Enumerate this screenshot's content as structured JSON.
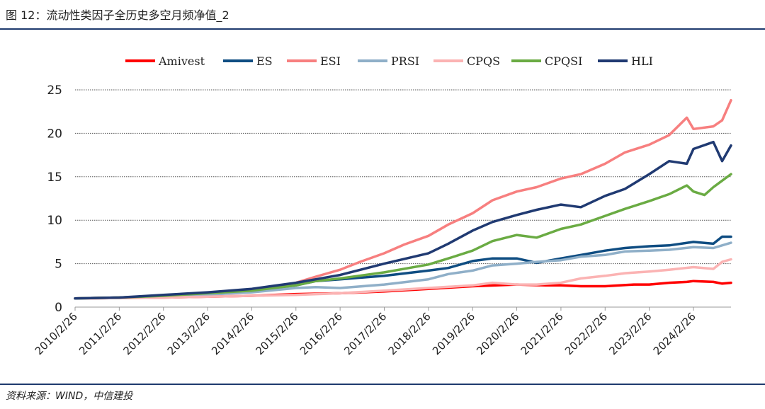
{
  "header": {
    "title": "图 12：流动性类因子全历史多空月频净值_2"
  },
  "footer": {
    "source": "资料来源：WIND，中信建投"
  },
  "chart_data": {
    "type": "line",
    "ylim": [
      0,
      25
    ],
    "yticks": [
      "0",
      "5",
      "10",
      "15",
      "20",
      "25"
    ],
    "xticks": [
      "2010/2/26",
      "2011/2/26",
      "2012/2/26",
      "2013/2/26",
      "2014/2/26",
      "2015/2/26",
      "2016/2/26",
      "2017/2/26",
      "2018/2/26",
      "2019/2/26",
      "2020/2/26",
      "2021/2/26",
      "2022/2/26",
      "2023/2/26",
      "2024/2/26"
    ],
    "x_start": 2010.15,
    "x_end": 2025.0,
    "grid": true,
    "legend_position": "top",
    "series": [
      {
        "name": "Amivest",
        "color": "#ff0000",
        "x": [
          2010.15,
          2011.15,
          2012.15,
          2013.15,
          2014.15,
          2015.15,
          2016.15,
          2017.15,
          2018.15,
          2019.15,
          2020.15,
          2020.8,
          2021.15,
          2021.6,
          2022.15,
          2022.8,
          2023.15,
          2023.6,
          2024.0,
          2024.15,
          2024.6,
          2024.8,
          2025.0
        ],
        "y": [
          1.0,
          1.05,
          1.1,
          1.2,
          1.3,
          1.5,
          1.6,
          1.8,
          2.1,
          2.4,
          2.6,
          2.5,
          2.5,
          2.4,
          2.4,
          2.6,
          2.6,
          2.8,
          2.9,
          3.0,
          2.9,
          2.7,
          2.8
        ]
      },
      {
        "name": "ES",
        "color": "#0f4d82",
        "x": [
          2010.15,
          2011.15,
          2012.15,
          2013.15,
          2014.15,
          2015.15,
          2015.6,
          2016.15,
          2017.15,
          2018.15,
          2018.6,
          2019.15,
          2019.6,
          2020.15,
          2020.6,
          2021.15,
          2021.6,
          2022.15,
          2022.6,
          2023.15,
          2023.6,
          2024.15,
          2024.6,
          2024.8,
          2025.0
        ],
        "y": [
          1.0,
          1.1,
          1.3,
          1.6,
          1.9,
          2.5,
          3.0,
          3.2,
          3.6,
          4.2,
          4.5,
          5.3,
          5.6,
          5.6,
          5.1,
          5.6,
          6.0,
          6.5,
          6.8,
          7.0,
          7.1,
          7.5,
          7.3,
          8.1,
          8.1
        ]
      },
      {
        "name": "ESI",
        "color": "#f77f7f",
        "x": [
          2010.15,
          2011.15,
          2012.15,
          2013.15,
          2014.15,
          2014.8,
          2015.15,
          2015.6,
          2016.15,
          2016.6,
          2017.15,
          2017.6,
          2018.15,
          2018.6,
          2019.15,
          2019.6,
          2020.15,
          2020.6,
          2021.15,
          2021.6,
          2022.15,
          2022.6,
          2023.15,
          2023.6,
          2024.0,
          2024.15,
          2024.6,
          2024.8,
          2025.0
        ],
        "y": [
          1.0,
          1.1,
          1.3,
          1.6,
          2.0,
          2.4,
          2.8,
          3.5,
          4.3,
          5.2,
          6.2,
          7.2,
          8.2,
          9.5,
          10.8,
          12.3,
          13.3,
          13.8,
          14.8,
          15.3,
          16.5,
          17.8,
          18.7,
          19.8,
          21.8,
          20.5,
          20.8,
          21.5,
          23.8
        ]
      },
      {
        "name": "PRSI",
        "color": "#8fafc8",
        "x": [
          2010.15,
          2011.15,
          2012.15,
          2013.15,
          2014.15,
          2015.15,
          2015.6,
          2016.15,
          2017.15,
          2018.15,
          2018.6,
          2019.15,
          2019.6,
          2020.15,
          2020.6,
          2021.15,
          2021.6,
          2022.15,
          2022.6,
          2023.15,
          2023.6,
          2024.15,
          2024.6,
          2025.0
        ],
        "y": [
          1.0,
          1.05,
          1.2,
          1.45,
          1.7,
          2.2,
          2.3,
          2.2,
          2.6,
          3.2,
          3.8,
          4.2,
          4.8,
          5.0,
          5.2,
          5.4,
          5.8,
          6.0,
          6.4,
          6.5,
          6.6,
          6.9,
          6.8,
          7.4
        ]
      },
      {
        "name": "CPQS",
        "color": "#fbb3b3",
        "x": [
          2010.15,
          2011.15,
          2012.15,
          2013.15,
          2014.15,
          2015.15,
          2016.15,
          2017.15,
          2018.15,
          2019.15,
          2019.6,
          2020.15,
          2020.6,
          2021.15,
          2021.6,
          2022.15,
          2022.6,
          2023.15,
          2023.6,
          2024.15,
          2024.6,
          2024.8,
          2025.0
        ],
        "y": [
          1.0,
          1.05,
          1.1,
          1.2,
          1.3,
          1.4,
          1.6,
          1.9,
          2.2,
          2.5,
          2.8,
          2.6,
          2.6,
          2.8,
          3.3,
          3.6,
          3.9,
          4.1,
          4.3,
          4.6,
          4.4,
          5.2,
          5.5
        ]
      },
      {
        "name": "CPQSI",
        "color": "#6aab43",
        "x": [
          2010.15,
          2011.15,
          2012.15,
          2013.15,
          2014.15,
          2015.15,
          2015.6,
          2016.15,
          2017.15,
          2018.15,
          2018.6,
          2019.15,
          2019.6,
          2020.15,
          2020.6,
          2021.15,
          2021.6,
          2022.15,
          2022.6,
          2023.15,
          2023.6,
          2024.0,
          2024.15,
          2024.4,
          2024.6,
          2025.0
        ],
        "y": [
          1.0,
          1.1,
          1.3,
          1.6,
          1.9,
          2.5,
          3.0,
          3.3,
          4.0,
          4.9,
          5.6,
          6.5,
          7.6,
          8.3,
          8.0,
          9.0,
          9.5,
          10.5,
          11.3,
          12.2,
          13.0,
          14.0,
          13.3,
          12.9,
          13.8,
          15.3
        ]
      },
      {
        "name": "HLI",
        "color": "#203a72",
        "x": [
          2010.15,
          2011.15,
          2012.15,
          2013.15,
          2014.15,
          2015.15,
          2015.6,
          2016.15,
          2017.15,
          2018.15,
          2018.6,
          2019.15,
          2019.6,
          2020.15,
          2020.6,
          2021.15,
          2021.6,
          2022.15,
          2022.6,
          2023.15,
          2023.6,
          2024.0,
          2024.15,
          2024.6,
          2024.8,
          2025.0
        ],
        "y": [
          1.0,
          1.1,
          1.4,
          1.7,
          2.1,
          2.8,
          3.2,
          3.7,
          5.0,
          6.2,
          7.3,
          8.8,
          9.8,
          10.6,
          11.2,
          11.8,
          11.5,
          12.8,
          13.6,
          15.3,
          16.8,
          16.5,
          18.2,
          19.0,
          16.8,
          18.6
        ]
      }
    ]
  }
}
